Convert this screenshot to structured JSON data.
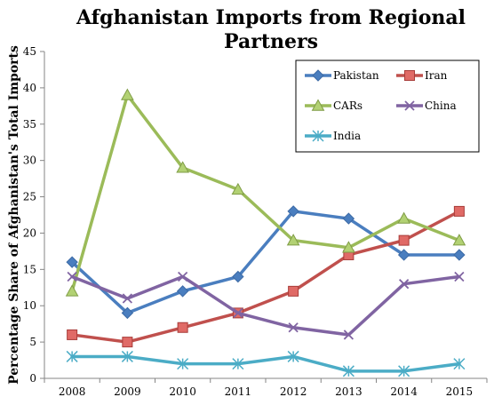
{
  "chart_data": {
    "type": "line",
    "title": "Afghanistan Imports from Regional Partners",
    "title_lines": [
      "Afghanistan Imports from Regional",
      "Partners"
    ],
    "xlabel": "",
    "ylabel": "Percentage Share of Afghanistan's Total Imports",
    "x": [
      "2008",
      "2009",
      "2010",
      "2011",
      "2012",
      "2013",
      "2014",
      "2015"
    ],
    "ylim": [
      0,
      45
    ],
    "yticks": [
      0,
      5,
      10,
      15,
      20,
      25,
      30,
      35,
      40,
      45
    ],
    "grid": false,
    "legend_position": "top-right",
    "series": [
      {
        "name": "Pakistan",
        "values": [
          16,
          9,
          12,
          14,
          23,
          22,
          17,
          17
        ],
        "color": "#4a7ebf",
        "marker": "diamond"
      },
      {
        "name": "Iran",
        "values": [
          6,
          5,
          7,
          9,
          12,
          17,
          19,
          23
        ],
        "color": "#c0504d",
        "marker": "square"
      },
      {
        "name": "CARs",
        "values": [
          12,
          39,
          29,
          26,
          19,
          18,
          22,
          19
        ],
        "color": "#9bbb59",
        "marker": "triangle"
      },
      {
        "name": "China",
        "values": [
          14,
          11,
          14,
          9,
          7,
          6,
          13,
          14
        ],
        "color": "#8064a2",
        "marker": "x"
      },
      {
        "name": "India",
        "values": [
          3,
          3,
          2,
          2,
          3,
          1,
          1,
          2
        ],
        "color": "#4bacc6",
        "marker": "star"
      }
    ]
  }
}
